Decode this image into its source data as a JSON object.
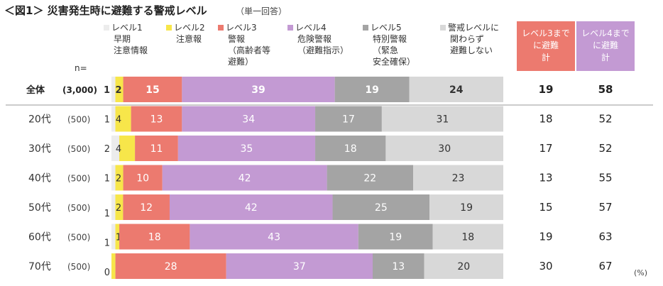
{
  "chart_data": {
    "type": "bar",
    "orientation": "horizontal",
    "stacked": true,
    "title": "＜図1＞ 災害発生時に避難する警戒レベル",
    "subtitle": "（単一回答）",
    "n_label": "n=",
    "unit": "(%)",
    "categories": [
      {
        "label": "全体",
        "n": "(3,000)"
      },
      {
        "label": "20代",
        "n": "(500)"
      },
      {
        "label": "30代",
        "n": "(500)"
      },
      {
        "label": "40代",
        "n": "(500)"
      },
      {
        "label": "50代",
        "n": "(500)"
      },
      {
        "label": "60代",
        "n": "(500)"
      },
      {
        "label": "70代",
        "n": "(500)"
      }
    ],
    "series": [
      {
        "name": "レベル1\n早期\n注意情報",
        "color": "#ececec",
        "values": [
          1,
          1,
          2,
          1,
          1,
          1,
          0
        ]
      },
      {
        "name": "レベル2\n注意報",
        "color": "#f7e64a",
        "values": [
          2,
          4,
          4,
          2,
          2,
          1,
          1
        ]
      },
      {
        "name": "レベル3\n警報\n（高齢者等\n避難）",
        "color": "#ec7a6f",
        "values": [
          15,
          13,
          11,
          10,
          12,
          18,
          28
        ]
      },
      {
        "name": "レベル4\n危険警報\n（避難指示）",
        "color": "#c39ad3",
        "values": [
          39,
          34,
          35,
          42,
          42,
          43,
          37
        ]
      },
      {
        "name": "レベル5\n特別警報\n（緊急\n安全確保）",
        "color": "#a4a4a4",
        "values": [
          19,
          17,
          18,
          22,
          25,
          19,
          13
        ]
      },
      {
        "name": "警戒レベルに\n関わらず\n避難しない",
        "color": "#d8d8d8",
        "values": [
          24,
          31,
          30,
          23,
          19,
          18,
          20
        ]
      }
    ],
    "cumulative": [
      {
        "name": "レベル3まで\nに避難\n計",
        "color": "#ec7a6f",
        "values": [
          19,
          18,
          17,
          13,
          15,
          19,
          30
        ]
      },
      {
        "name": "レベル4まで\nに避難\n計",
        "color": "#c39ad3",
        "values": [
          58,
          52,
          52,
          55,
          57,
          63,
          67
        ]
      }
    ],
    "xlim": [
      0,
      100
    ]
  }
}
